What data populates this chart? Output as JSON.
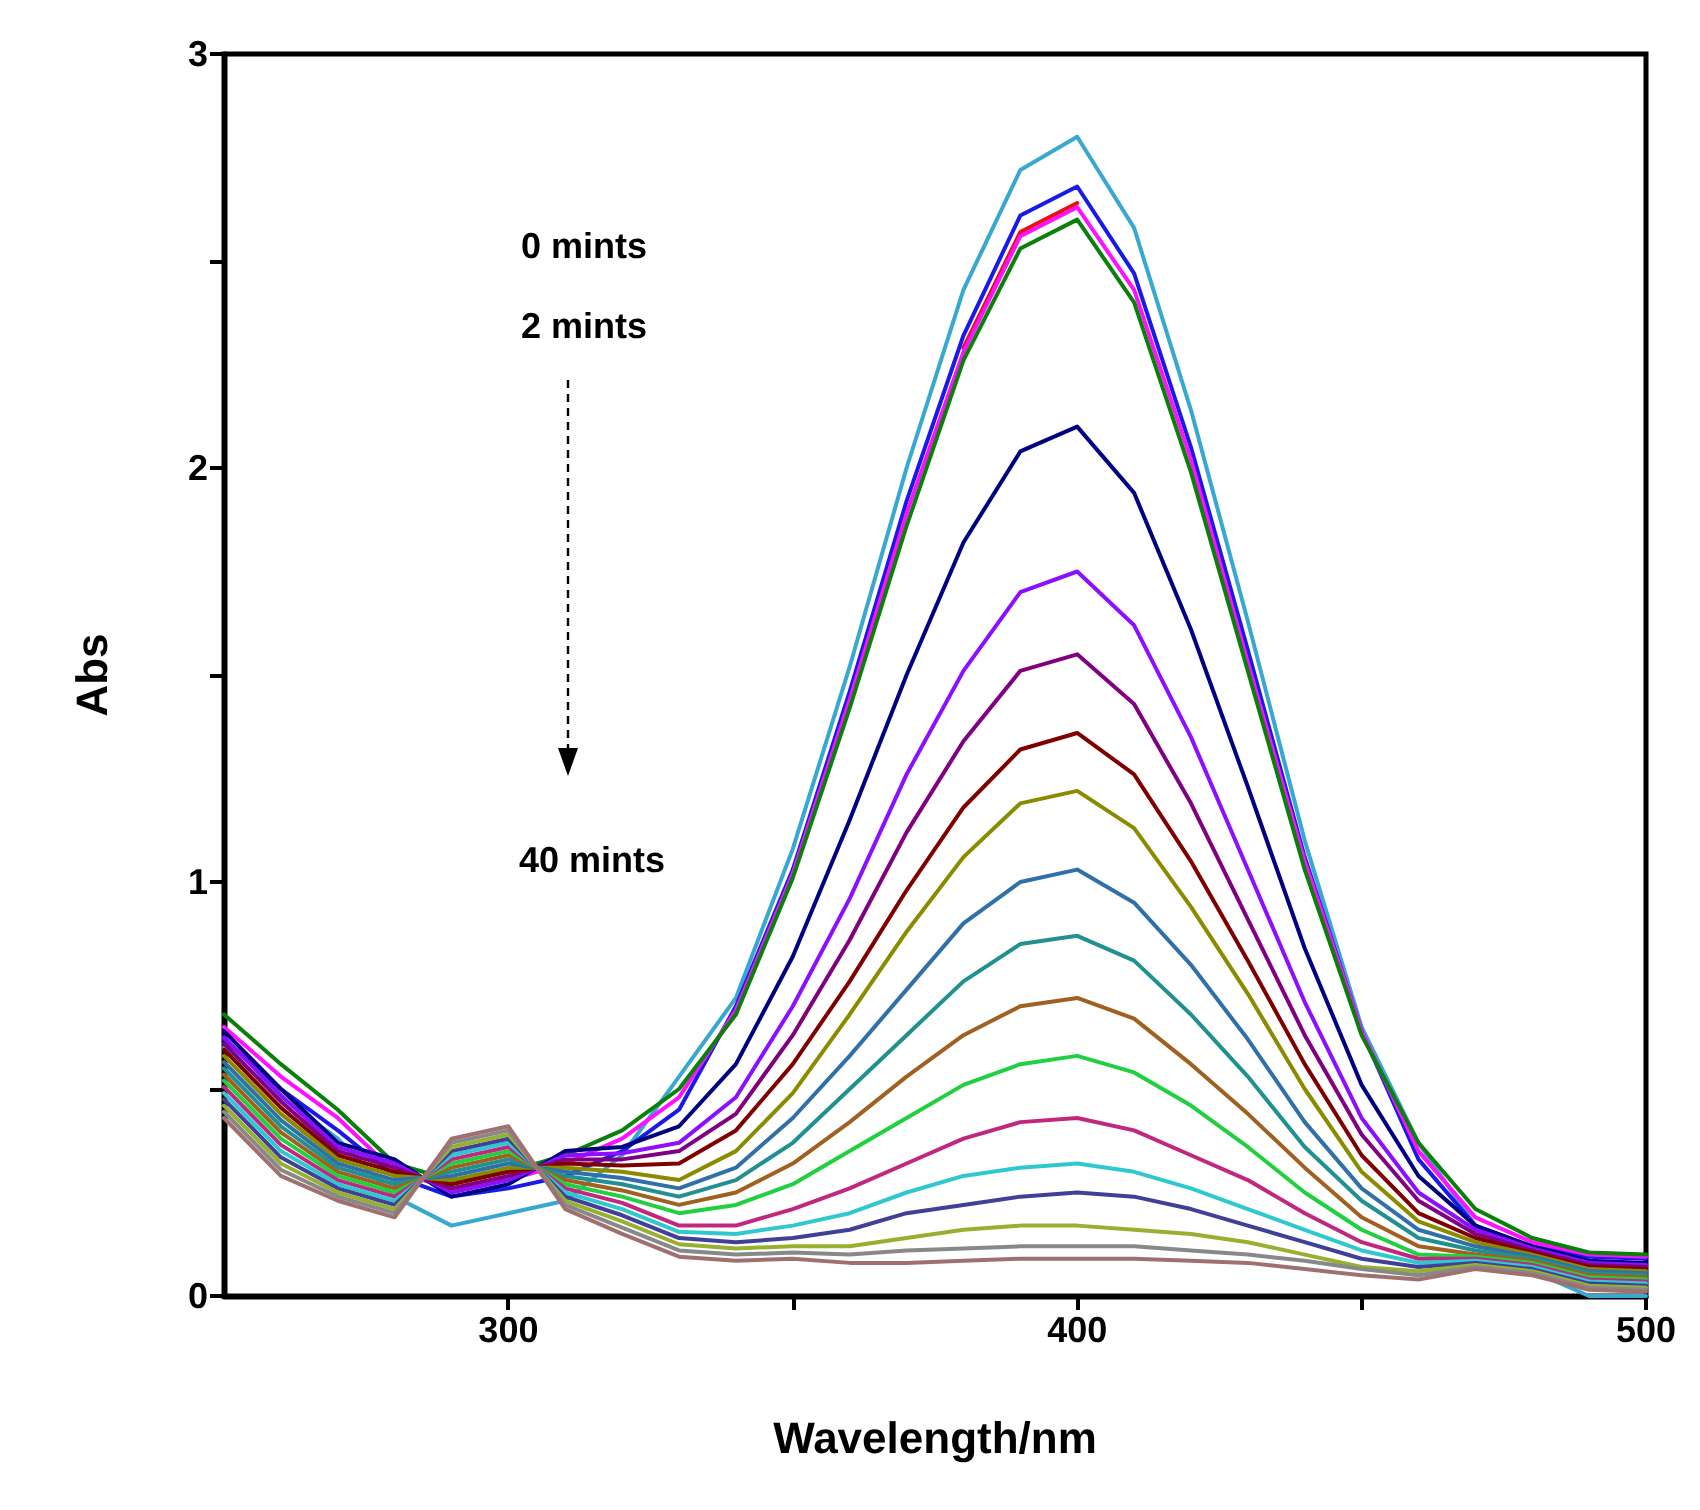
{
  "chart_data": {
    "type": "line",
    "xlabel": "Wavelength/nm",
    "ylabel": "Abs",
    "x": [
      250,
      260,
      270,
      280,
      290,
      300,
      310,
      320,
      330,
      340,
      350,
      360,
      370,
      380,
      390,
      400,
      410,
      420,
      430,
      440,
      450,
      460,
      470,
      480,
      490,
      500
    ],
    "xlim": [
      250,
      500
    ],
    "xticks": [
      300,
      {
        "value": 350,
        "label": null
      },
      400,
      {
        "value": 450,
        "label": null
      },
      500
    ],
    "ylim": [
      0,
      3
    ],
    "yticks": [
      0,
      {
        "value": 0.5,
        "label": null
      },
      1,
      {
        "value": 1.5,
        "label": null
      },
      2,
      {
        "value": 2.5,
        "label": null
      },
      3
    ],
    "grid": false,
    "marker": "none",
    "line_style": "solid",
    "annotations": [
      "0 mints",
      "2 mints",
      "40 mints"
    ],
    "series": [
      {
        "color": "#38a8d0",
        "values": [
          0.6,
          0.48,
          0.38,
          0.24,
          0.17,
          0.2,
          0.23,
          0.34,
          0.53,
          0.72,
          1.08,
          1.52,
          2.0,
          2.43,
          2.72,
          2.8,
          2.58,
          2.14,
          1.63,
          1.1,
          0.65,
          0.37,
          0.17,
          0.06,
          0.0,
          0.0
        ]
      },
      {
        "color": "#1a1ae8",
        "values": [
          0.62,
          0.5,
          0.4,
          0.29,
          0.24,
          0.26,
          0.29,
          0.35,
          0.45,
          0.7,
          1.03,
          1.46,
          1.92,
          2.32,
          2.61,
          2.68,
          2.47,
          2.05,
          1.56,
          1.06,
          0.64,
          0.33,
          0.17,
          0.12,
          0.095,
          0.09
        ]
      },
      {
        "color": "#e81010",
        "values": [
          null,
          null,
          null,
          null,
          null,
          null,
          null,
          null,
          null,
          null,
          null,
          null,
          null,
          2.29,
          2.57,
          2.64,
          null,
          null,
          null,
          null,
          null,
          null,
          null,
          null,
          null,
          null
        ]
      },
      {
        "color": "#ff10ff",
        "values": [
          0.65,
          0.53,
          0.43,
          0.3,
          0.26,
          0.28,
          0.32,
          0.38,
          0.48,
          0.69,
          1.02,
          1.44,
          1.89,
          2.28,
          2.56,
          2.63,
          2.43,
          2.02,
          1.53,
          1.05,
          0.64,
          0.35,
          0.19,
          0.13,
          0.1,
          0.095
        ]
      },
      {
        "color": "#0a800a",
        "values": [
          0.68,
          0.56,
          0.45,
          0.32,
          0.28,
          0.3,
          0.34,
          0.4,
          0.5,
          0.68,
          1.01,
          1.42,
          1.86,
          2.26,
          2.53,
          2.6,
          2.4,
          1.99,
          1.51,
          1.03,
          0.63,
          0.37,
          0.21,
          0.14,
          0.105,
          0.1
        ]
      },
      {
        "color": "#000080",
        "values": [
          0.64,
          0.5,
          0.37,
          0.33,
          0.24,
          0.27,
          0.35,
          0.36,
          0.41,
          0.56,
          0.82,
          1.15,
          1.5,
          1.82,
          2.04,
          2.1,
          1.94,
          1.61,
          1.23,
          0.84,
          0.51,
          0.29,
          0.17,
          0.12,
          0.085,
          0.08
        ]
      },
      {
        "color": "#8b10ff",
        "values": [
          0.625,
          0.485,
          0.36,
          0.32,
          0.25,
          0.28,
          0.34,
          0.345,
          0.37,
          0.48,
          0.7,
          0.96,
          1.26,
          1.51,
          1.7,
          1.75,
          1.62,
          1.35,
          1.03,
          0.71,
          0.43,
          0.25,
          0.16,
          0.115,
          0.08,
          0.075
        ]
      },
      {
        "color": "#800080",
        "values": [
          0.61,
          0.47,
          0.35,
          0.31,
          0.26,
          0.29,
          0.33,
          0.33,
          0.35,
          0.44,
          0.63,
          0.86,
          1.12,
          1.34,
          1.51,
          1.55,
          1.43,
          1.19,
          0.91,
          0.63,
          0.39,
          0.23,
          0.15,
          0.11,
          0.075,
          0.07
        ]
      },
      {
        "color": "#800000",
        "values": [
          0.595,
          0.455,
          0.34,
          0.3,
          0.27,
          0.3,
          0.32,
          0.315,
          0.32,
          0.4,
          0.56,
          0.76,
          0.98,
          1.18,
          1.32,
          1.36,
          1.26,
          1.05,
          0.81,
          0.56,
          0.34,
          0.2,
          0.14,
          0.105,
          0.07,
          0.065
        ]
      },
      {
        "color": "#8b8b00",
        "values": [
          0.58,
          0.44,
          0.33,
          0.29,
          0.28,
          0.31,
          0.31,
          0.3,
          0.28,
          0.35,
          0.49,
          0.68,
          0.88,
          1.06,
          1.19,
          1.22,
          1.13,
          0.94,
          0.73,
          0.5,
          0.3,
          0.18,
          0.13,
          0.1,
          0.065,
          0.06
        ]
      },
      {
        "color": "#3070a8",
        "values": [
          0.565,
          0.425,
          0.32,
          0.28,
          0.29,
          0.32,
          0.3,
          0.285,
          0.26,
          0.31,
          0.43,
          0.58,
          0.74,
          0.9,
          1.0,
          1.03,
          0.95,
          0.8,
          0.62,
          0.42,
          0.26,
          0.16,
          0.12,
          0.095,
          0.06,
          0.055
        ]
      },
      {
        "color": "#209090",
        "values": [
          0.55,
          0.41,
          0.31,
          0.27,
          0.3,
          0.33,
          0.29,
          0.27,
          0.24,
          0.28,
          0.37,
          0.5,
          0.63,
          0.76,
          0.85,
          0.87,
          0.81,
          0.68,
          0.53,
          0.36,
          0.23,
          0.14,
          0.11,
          0.09,
          0.055,
          0.05
        ]
      },
      {
        "color": "#a06020",
        "values": [
          0.535,
          0.395,
          0.3,
          0.26,
          0.31,
          0.34,
          0.28,
          0.255,
          0.22,
          0.25,
          0.32,
          0.42,
          0.53,
          0.63,
          0.7,
          0.72,
          0.67,
          0.56,
          0.44,
          0.31,
          0.19,
          0.12,
          0.1,
          0.085,
          0.05,
          0.045
        ]
      },
      {
        "color": "#20d040",
        "values": [
          0.52,
          0.38,
          0.29,
          0.25,
          0.32,
          0.35,
          0.27,
          0.24,
          0.2,
          0.22,
          0.27,
          0.35,
          0.43,
          0.51,
          0.56,
          0.58,
          0.54,
          0.46,
          0.36,
          0.25,
          0.16,
          0.1,
          0.095,
          0.08,
          0.045,
          0.04
        ]
      },
      {
        "color": "#c02880",
        "values": [
          0.505,
          0.365,
          0.28,
          0.24,
          0.33,
          0.36,
          0.26,
          0.225,
          0.17,
          0.17,
          0.21,
          0.26,
          0.32,
          0.38,
          0.42,
          0.43,
          0.4,
          0.34,
          0.28,
          0.2,
          0.13,
          0.09,
          0.09,
          0.075,
          0.04,
          0.035
        ]
      },
      {
        "color": "#30c8d0",
        "values": [
          0.49,
          0.35,
          0.27,
          0.23,
          0.34,
          0.37,
          0.25,
          0.21,
          0.155,
          0.15,
          0.17,
          0.2,
          0.25,
          0.29,
          0.31,
          0.32,
          0.3,
          0.26,
          0.21,
          0.16,
          0.11,
          0.08,
          0.085,
          0.07,
          0.035,
          0.03
        ]
      },
      {
        "color": "#404098",
        "values": [
          0.475,
          0.335,
          0.26,
          0.22,
          0.35,
          0.38,
          0.24,
          0.195,
          0.14,
          0.13,
          0.14,
          0.16,
          0.2,
          0.22,
          0.24,
          0.25,
          0.24,
          0.21,
          0.17,
          0.13,
          0.09,
          0.07,
          0.08,
          0.065,
          0.03,
          0.025
        ]
      },
      {
        "color": "#98b030",
        "values": [
          0.46,
          0.32,
          0.25,
          0.21,
          0.36,
          0.39,
          0.23,
          0.18,
          0.125,
          0.115,
          0.12,
          0.12,
          0.14,
          0.16,
          0.17,
          0.17,
          0.16,
          0.15,
          0.13,
          0.1,
          0.07,
          0.06,
          0.075,
          0.06,
          0.025,
          0.02
        ]
      },
      {
        "color": "#888888",
        "values": [
          0.445,
          0.305,
          0.24,
          0.2,
          0.37,
          0.4,
          0.22,
          0.165,
          0.11,
          0.1,
          0.105,
          0.1,
          0.11,
          0.115,
          0.12,
          0.12,
          0.12,
          0.11,
          0.1,
          0.085,
          0.065,
          0.05,
          0.07,
          0.055,
          0.02,
          0.015
        ]
      },
      {
        "color": "#a07070",
        "values": [
          0.43,
          0.29,
          0.23,
          0.19,
          0.38,
          0.41,
          0.21,
          0.15,
          0.095,
          0.085,
          0.09,
          0.08,
          0.08,
          0.085,
          0.09,
          0.09,
          0.09,
          0.085,
          0.08,
          0.065,
          0.05,
          0.04,
          0.065,
          0.05,
          0.015,
          0.01
        ]
      }
    ]
  }
}
